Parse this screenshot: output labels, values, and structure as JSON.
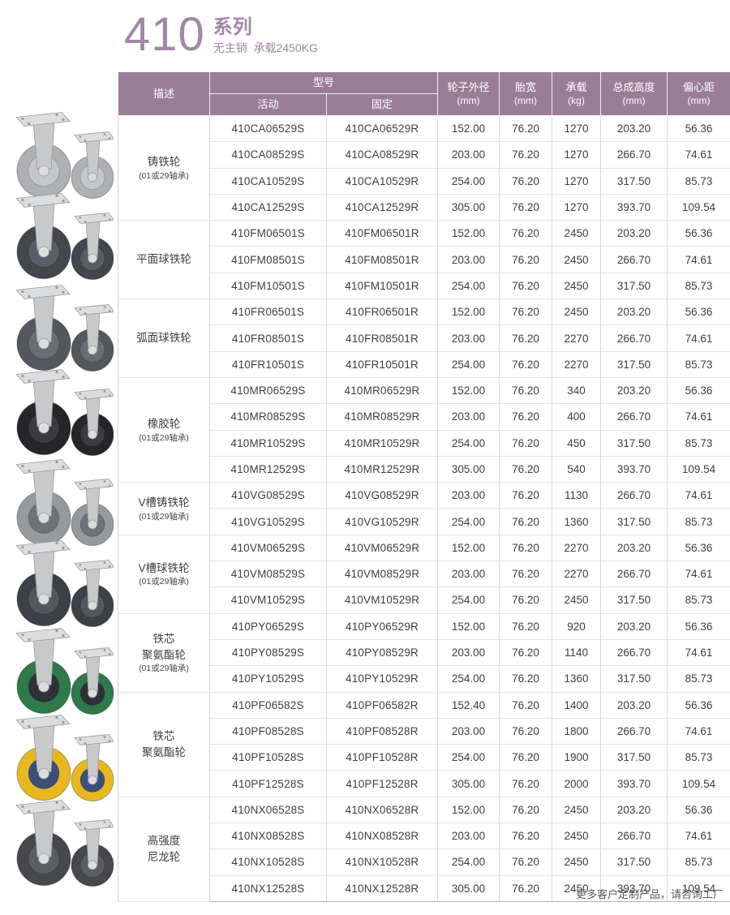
{
  "page": {
    "title_number": "410",
    "title_series": "系列",
    "subtitle": "无主销  承载2450KG",
    "footer_note": "更多客户定制产品，请咨询工厂"
  },
  "colors": {
    "header_bg": "#9a7e98",
    "title_purple": "#a287a8",
    "table_left_border": "#d8cade",
    "group_separator": "#b2b2b2",
    "row_separator": "#e2e2e2",
    "body_text": "#3e3e40"
  },
  "table": {
    "headers": {
      "desc": "描述",
      "model": "型号",
      "model_swivel": "活动",
      "model_fixed": "固定",
      "wheel_dia": "轮子外径",
      "wheel_dia_unit": "(mm)",
      "tread_width": "胎宽",
      "tread_width_unit": "(mm)",
      "load": "承载",
      "load_unit": "(kg)",
      "height": "总成高度",
      "height_unit": "(mm)",
      "offset": "偏心距",
      "offset_unit": "(mm)"
    },
    "groups": [
      {
        "desc_lines": [
          "铸铁轮",
          "(01或29轴承)"
        ],
        "image": {
          "tread": "#aeb0b3",
          "hub": "#c6c7c9"
        },
        "rows": [
          [
            "410CA06529S",
            "410CA06529R",
            "152.00",
            "76.20",
            "1270",
            "203.20",
            "56.36"
          ],
          [
            "410CA08529S",
            "410CA08529R",
            "203.00",
            "76.20",
            "1270",
            "266.70",
            "74.61"
          ],
          [
            "410CA10529S",
            "410CA10529R",
            "254.00",
            "76.20",
            "1270",
            "317.50",
            "85.73"
          ],
          [
            "410CA12529S",
            "410CA12529R",
            "305.00",
            "76.20",
            "1270",
            "393.70",
            "109.54"
          ]
        ]
      },
      {
        "desc_lines": [
          "平面球铁轮"
        ],
        "image": {
          "tread": "#43464d",
          "hub": "#595d65"
        },
        "rows": [
          [
            "410FM06501S",
            "410FM06501R",
            "152.00",
            "76.20",
            "2450",
            "203.20",
            "56.36"
          ],
          [
            "410FM08501S",
            "410FM08501R",
            "203.00",
            "76.20",
            "2450",
            "266.70",
            "74.61"
          ],
          [
            "410FM10501S",
            "410FM10501R",
            "254.00",
            "76.20",
            "2450",
            "317.50",
            "85.73"
          ]
        ]
      },
      {
        "desc_lines": [
          "弧面球铁轮"
        ],
        "image": {
          "tread": "#54575d",
          "hub": "#6a6d73"
        },
        "rows": [
          [
            "410FR06501S",
            "410FR06501R",
            "152.00",
            "76.20",
            "2450",
            "203.20",
            "56.36"
          ],
          [
            "410FR08501S",
            "410FR08501R",
            "203.00",
            "76.20",
            "2270",
            "266.70",
            "74.61"
          ],
          [
            "410FR10501S",
            "410FR10501R",
            "254.00",
            "76.20",
            "2270",
            "317.50",
            "85.73"
          ]
        ]
      },
      {
        "desc_lines": [
          "橡胶轮",
          "(01或29轴承)"
        ],
        "image": {
          "tread": "#26262a",
          "hub": "#3b3b41"
        },
        "rows": [
          [
            "410MR06529S",
            "410MR06529R",
            "152.00",
            "76.20",
            "340",
            "203.20",
            "56.36"
          ],
          [
            "410MR08529S",
            "410MR08529R",
            "203.00",
            "76.20",
            "400",
            "266.70",
            "74.61"
          ],
          [
            "410MR10529S",
            "410MR10529R",
            "254.00",
            "76.20",
            "450",
            "317.50",
            "85.73"
          ],
          [
            "410MR12529S",
            "410MR12529R",
            "305.00",
            "76.20",
            "540",
            "393.70",
            "109.54"
          ]
        ]
      },
      {
        "desc_lines": [
          "V槽铸铁轮",
          "(01或29轴承)"
        ],
        "image": {
          "tread": "#96999d",
          "hub": "#6e7177"
        },
        "rows": [
          [
            "410VG08529S",
            "410VG08529R",
            "203.00",
            "76.20",
            "1130",
            "266.70",
            "74.61"
          ],
          [
            "410VG10529S",
            "410VG10529R",
            "254.00",
            "76.20",
            "1360",
            "317.50",
            "85.73"
          ]
        ]
      },
      {
        "desc_lines": [
          "V槽球铁轮",
          "(01或29轴承)"
        ],
        "image": {
          "tread": "#3c4047",
          "hub": "#52565e"
        },
        "rows": [
          [
            "410VM06529S",
            "410VM06529R",
            "152.00",
            "76.20",
            "2270",
            "203.20",
            "56.36"
          ],
          [
            "410VM08529S",
            "410VM08529R",
            "203.00",
            "76.20",
            "2270",
            "266.70",
            "74.61"
          ],
          [
            "410VM10529S",
            "410VM10529R",
            "254.00",
            "76.20",
            "2450",
            "317.50",
            "85.73"
          ]
        ]
      },
      {
        "desc_lines": [
          "铁芯",
          "聚氨酯轮",
          "(01或29轴承)"
        ],
        "image": {
          "tread": "#2d7a4b",
          "hub": "#2e3237"
        },
        "rows": [
          [
            "410PY06529S",
            "410PY06529R",
            "152.00",
            "76.20",
            "920",
            "203.20",
            "56.36"
          ],
          [
            "410PY08529S",
            "410PY08529R",
            "203.00",
            "76.20",
            "1140",
            "266.70",
            "74.61"
          ],
          [
            "410PY10529S",
            "410PY10529R",
            "254.00",
            "76.20",
            "1360",
            "317.50",
            "85.73"
          ]
        ]
      },
      {
        "desc_lines": [
          "铁芯",
          "聚氨酯轮"
        ],
        "image": {
          "tread": "#e8b821",
          "hub": "#3c4f79"
        },
        "rows": [
          [
            "410PF06582S",
            "410PF06582R",
            "152.40",
            "76.20",
            "1400",
            "203.20",
            "56.36"
          ],
          [
            "410PF08528S",
            "410PF08528R",
            "203.00",
            "76.20",
            "1800",
            "266.70",
            "74.61"
          ],
          [
            "410PF10528S",
            "410PF10528R",
            "254.00",
            "76.20",
            "1900",
            "317.50",
            "85.73"
          ],
          [
            "410PF12528S",
            "410PF12528R",
            "305.00",
            "76.20",
            "2000",
            "393.70",
            "109.54"
          ]
        ]
      },
      {
        "desc_lines": [
          "高强度",
          "尼龙轮"
        ],
        "image": {
          "tread": "#46484d",
          "hub": "#5b5d62"
        },
        "rows": [
          [
            "410NX06528S",
            "410NX06528R",
            "152.00",
            "76.20",
            "2450",
            "203.20",
            "56.36"
          ],
          [
            "410NX08528S",
            "410NX08528R",
            "203.00",
            "76.20",
            "2450",
            "266.70",
            "74.61"
          ],
          [
            "410NX10528S",
            "410NX10528R",
            "254.00",
            "76.20",
            "2450",
            "317.50",
            "85.73"
          ],
          [
            "410NX12528S",
            "410NX12528R",
            "305.00",
            "76.20",
            "2450",
            "393.70",
            "109.54"
          ]
        ]
      }
    ]
  }
}
